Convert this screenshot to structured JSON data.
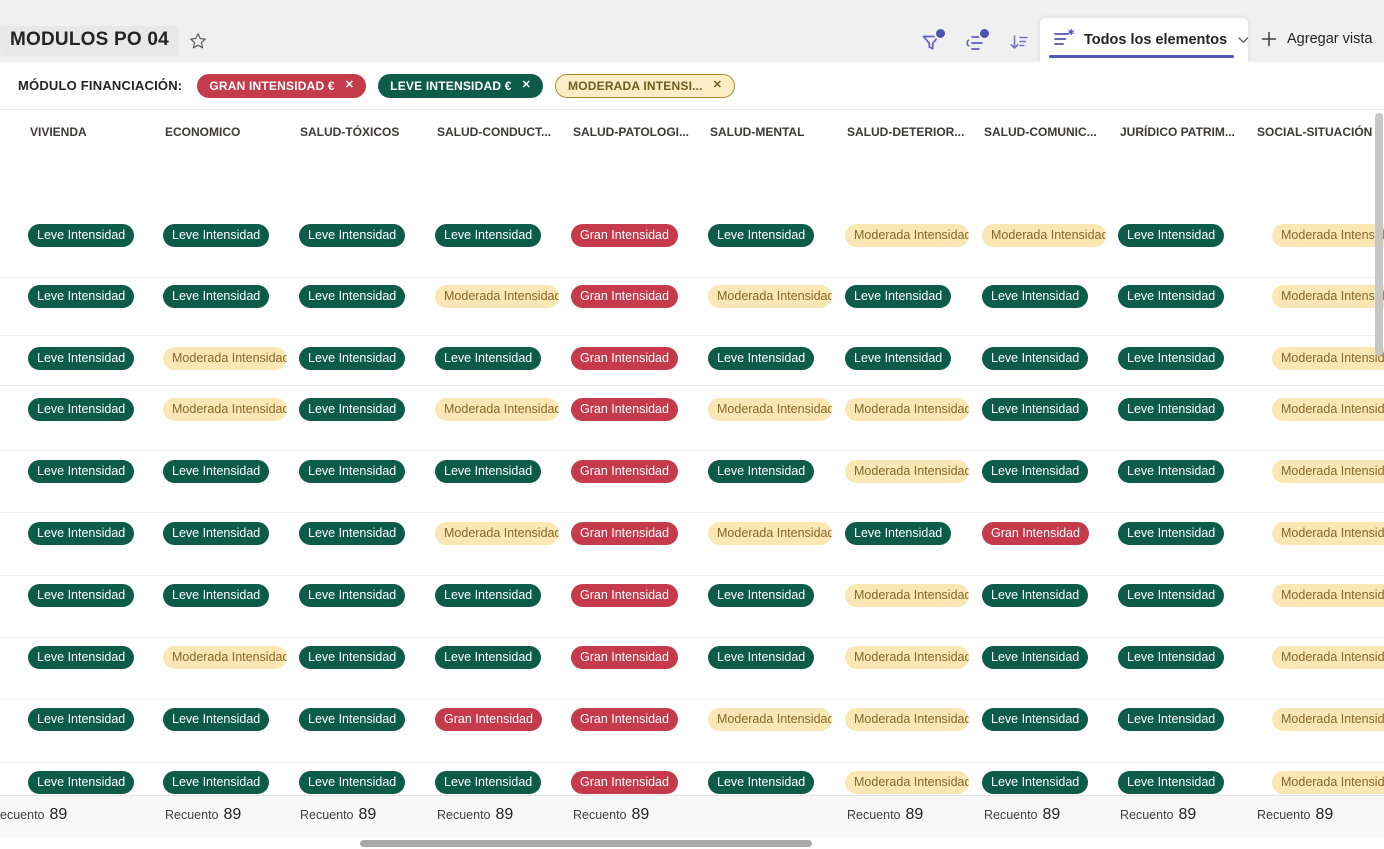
{
  "command_bar": {
    "title": "MODULOS PO 04",
    "favorite_icon": "star-outline-icon",
    "icons": [
      {
        "name": "filter-icon",
        "has_badge_dot": true
      },
      {
        "name": "group-by-icon",
        "has_badge_dot": true
      },
      {
        "name": "sort-icon",
        "has_badge_dot": false
      }
    ],
    "view_selector": {
      "icon": "view-list-icon",
      "label": "Todos los elementos",
      "chevron_icon": "chevron-down-icon"
    },
    "add_view": {
      "icon": "plus-icon",
      "label": "Agregar vista"
    }
  },
  "filter_bar": {
    "label": "MÓDULO FINANCIACIÓN:",
    "close_glyph": "✕",
    "chips": [
      {
        "label": "GRAN INTENSIDAD €",
        "variant": "red"
      },
      {
        "label": "LEVE INTENSIDAD €",
        "variant": "green"
      },
      {
        "label": "MODERADA INTENSI...",
        "variant": "yellow"
      }
    ]
  },
  "table": {
    "columns": [
      "VIVIENDA",
      "ECONOMICO",
      "SALUD-TÓXICOS",
      "SALUD-CONDUCT...",
      "SALUD-PATOLOGI...",
      "SALUD-MENTAL",
      "SALUD-DETERIOR...",
      "SALUD-COMUNIC...",
      "JURÍDICO PATRIM...",
      "SOCIAL-SITUACIÓN"
    ],
    "legend": {
      "L": {
        "label": "Leve Intensidad",
        "bg": "#0d5c48",
        "fg": "#ffffff"
      },
      "G": {
        "label": "Gran Intensidad",
        "bg": "#c63b4c",
        "fg": "#ffffff"
      },
      "M": {
        "label": "Moderada Intensidad",
        "bg": "#fbe7b3",
        "fg": "#85682c"
      }
    },
    "rows": [
      [
        "L",
        "L",
        "L",
        "L",
        "G",
        "L",
        "M",
        "M",
        "L",
        "M"
      ],
      [
        "L",
        "L",
        "L",
        "M",
        "G",
        "M",
        "L",
        "L",
        "L",
        "M"
      ],
      [
        "L",
        "M",
        "L",
        "L",
        "G",
        "L",
        "L",
        "L",
        "L",
        "M"
      ],
      [
        "L",
        "M",
        "L",
        "M",
        "G",
        "M",
        "M",
        "L",
        "L",
        "M"
      ],
      [
        "L",
        "L",
        "L",
        "L",
        "G",
        "L",
        "M",
        "L",
        "L",
        "M"
      ],
      [
        "L",
        "L",
        "L",
        "M",
        "G",
        "M",
        "L",
        "G",
        "L",
        "M"
      ],
      [
        "L",
        "L",
        "L",
        "L",
        "G",
        "L",
        "M",
        "L",
        "L",
        "M"
      ],
      [
        "L",
        "M",
        "L",
        "L",
        "G",
        "L",
        "M",
        "L",
        "L",
        "M"
      ],
      [
        "L",
        "L",
        "L",
        "G",
        "G",
        "M",
        "M",
        "L",
        "L",
        "M"
      ],
      [
        "L",
        "L",
        "L",
        "L",
        "G",
        "L",
        "M",
        "L",
        "L",
        "M"
      ]
    ],
    "footer": {
      "label": "Recuento",
      "counts": [
        "89",
        "89",
        "89",
        "89",
        "89",
        null,
        "89",
        "89",
        "89",
        "89"
      ]
    }
  },
  "colors": {
    "accent_purple": "#5b5fc7",
    "badge_dot": "#4f52b2",
    "badge_green": "#0d5c48",
    "badge_red": "#c63b4c",
    "badge_yellow_bg": "#fbe7b3",
    "badge_yellow_text": "#85682c",
    "chip_yellow_border": "#a98d2d",
    "commandbar_bg": "#f0f0f0"
  }
}
